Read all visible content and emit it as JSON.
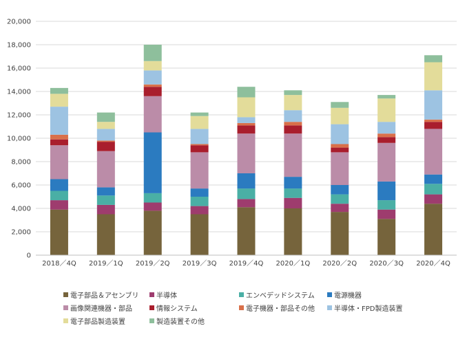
{
  "chart_data": {
    "type": "bar",
    "stacked": true,
    "title": "",
    "xlabel": "",
    "ylabel": "",
    "ylim": [
      0,
      20000
    ],
    "yticks": [
      0,
      2000,
      4000,
      6000,
      8000,
      10000,
      12000,
      14000,
      16000,
      18000,
      20000
    ],
    "ytick_labels": [
      "0",
      "2,000",
      "4,000",
      "6,000",
      "8,000",
      "10,000",
      "12,000",
      "14,000",
      "16,000",
      "18,000",
      "20,000"
    ],
    "grid": true,
    "legend_position": "bottom",
    "categories": [
      "2018／4Q",
      "2019／1Q",
      "2019／2Q",
      "2019／3Q",
      "2019／4Q",
      "2020／1Q",
      "2020／2Q",
      "2020／3Q",
      "2020／4Q"
    ],
    "series": [
      {
        "name": "電子部品＆アセンブリ",
        "color": "#76643C",
        "values": [
          3900,
          3500,
          3800,
          3500,
          4100,
          4000,
          3700,
          3100,
          4400
        ]
      },
      {
        "name": "半導体",
        "color": "#9E3C6E",
        "values": [
          800,
          800,
          700,
          700,
          700,
          900,
          700,
          800,
          800
        ]
      },
      {
        "name": "エンベデッドシステム",
        "color": "#4AAFA5",
        "values": [
          800,
          800,
          800,
          800,
          900,
          800,
          800,
          800,
          900
        ]
      },
      {
        "name": "電源機器",
        "color": "#2B7BC0",
        "values": [
          1000,
          700,
          5200,
          700,
          1300,
          1000,
          800,
          1600,
          800
        ]
      },
      {
        "name": "画像関連機器・部品",
        "color": "#BB8CA8",
        "values": [
          2900,
          3100,
          3100,
          3100,
          3400,
          3700,
          2800,
          3300,
          3900
        ]
      },
      {
        "name": "情報システム",
        "color": "#A91E2D",
        "values": [
          500,
          800,
          800,
          600,
          700,
          700,
          400,
          500,
          600
        ]
      },
      {
        "name": "電子機器・部品その他",
        "color": "#D9704A",
        "values": [
          400,
          100,
          200,
          100,
          200,
          300,
          300,
          300,
          200
        ]
      },
      {
        "name": "半導体・FPD製造装置",
        "color": "#9DC3E2",
        "values": [
          2400,
          1000,
          1200,
          1300,
          500,
          1000,
          1700,
          1000,
          2500
        ]
      },
      {
        "name": "電子部品製造装置",
        "color": "#E3DC9A",
        "values": [
          1100,
          600,
          800,
          1100,
          1700,
          1300,
          1400,
          2000,
          2400
        ]
      },
      {
        "name": "製造装置その他",
        "color": "#8EBF9C",
        "values": [
          500,
          800,
          1400,
          300,
          900,
          400,
          500,
          300,
          600
        ]
      }
    ]
  }
}
